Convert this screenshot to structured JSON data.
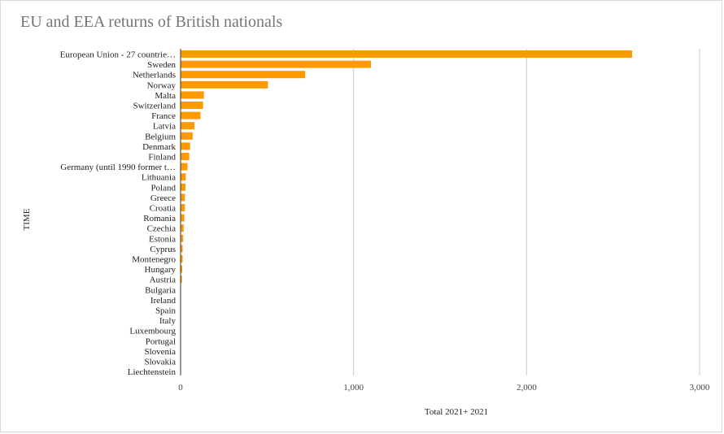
{
  "chart_data": {
    "type": "bar",
    "orientation": "horizontal",
    "title": "EU and EEA returns of British nationals",
    "xlabel": "Total 2021+ 2021",
    "ylabel": "TIME",
    "xlim": [
      0,
      3000
    ],
    "xticks": [
      0,
      1000,
      2000,
      3000
    ],
    "xtick_labels": [
      "0",
      "1,000",
      "2,000",
      "3,000"
    ],
    "grid": true,
    "bar_color": "#ff9900",
    "categories": [
      "European Union - 27 countrie…",
      "Sweden",
      "Netherlands",
      "Norway",
      "Malta",
      "Switzerland",
      "France",
      "Latvia",
      "Belgium",
      "Denmark",
      "Finland",
      "Germany (until 1990 former t…",
      "Lithuania",
      "Poland",
      "Greece",
      "Croatia",
      "Romania",
      "Czechia",
      "Estonia",
      "Cyprus",
      "Montenegro",
      "Hungary",
      "Austria",
      "Bulgaria",
      "Ireland",
      "Spain",
      "Italy",
      "Luxembourg",
      "Portugal",
      "Slovenia",
      "Slovakia",
      "Liechtenstein"
    ],
    "values": [
      2610,
      1100,
      720,
      505,
      135,
      130,
      115,
      80,
      70,
      55,
      50,
      40,
      30,
      28,
      25,
      25,
      22,
      18,
      15,
      12,
      12,
      10,
      8,
      0,
      0,
      0,
      0,
      0,
      0,
      0,
      0,
      0
    ]
  }
}
